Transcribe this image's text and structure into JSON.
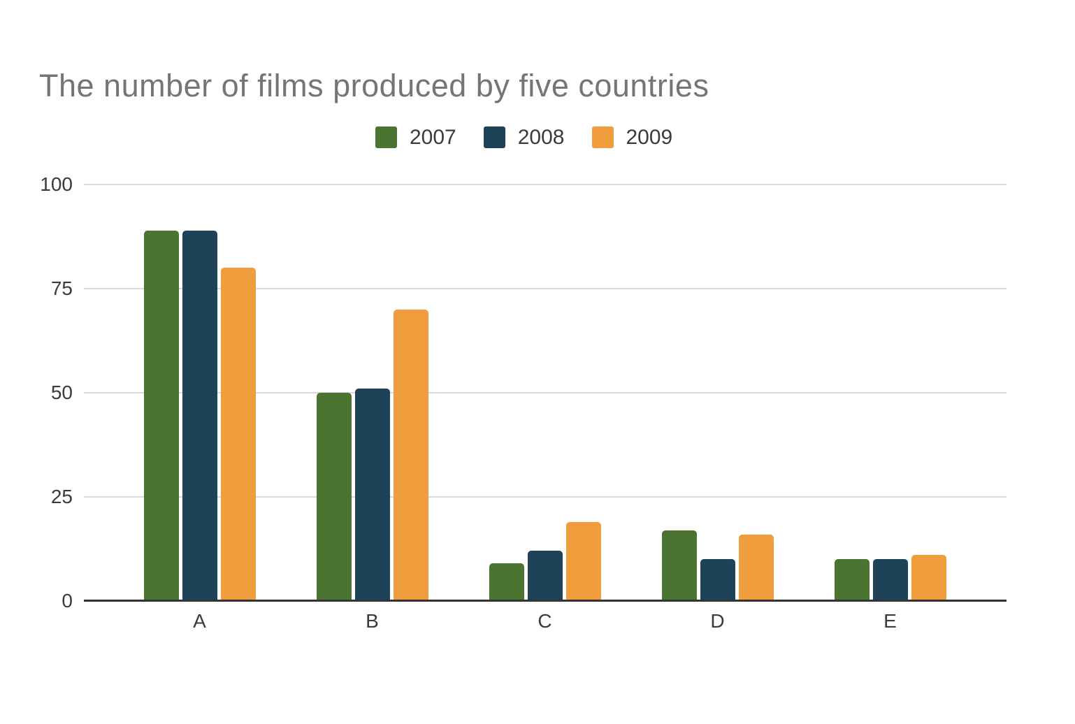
{
  "title": "The number of films produced by five countries",
  "chart_data": {
    "type": "bar",
    "title": "The number of films produced by five countries",
    "xlabel": "",
    "ylabel": "",
    "categories": [
      "A",
      "B",
      "C",
      "D",
      "E"
    ],
    "series": [
      {
        "name": "2007",
        "color": "#4A7430",
        "values": [
          89,
          50,
          9,
          17,
          10
        ]
      },
      {
        "name": "2008",
        "color": "#1E4358",
        "values": [
          89,
          51,
          12,
          10,
          10
        ]
      },
      {
        "name": "2009",
        "color": "#F09E3D",
        "values": [
          80,
          70,
          19,
          16,
          11
        ]
      }
    ],
    "ylim": [
      0,
      100
    ],
    "yticks": [
      0,
      25,
      50,
      75,
      100
    ],
    "grid": true,
    "legend_position": "top-center",
    "colors": {
      "title_text": "#757575",
      "tick_text": "#3B3B3B",
      "legend_text": "#3B3B3B",
      "gridline": "#DADADA",
      "axis_line": "#333333",
      "background": "#FFFFFF"
    }
  }
}
